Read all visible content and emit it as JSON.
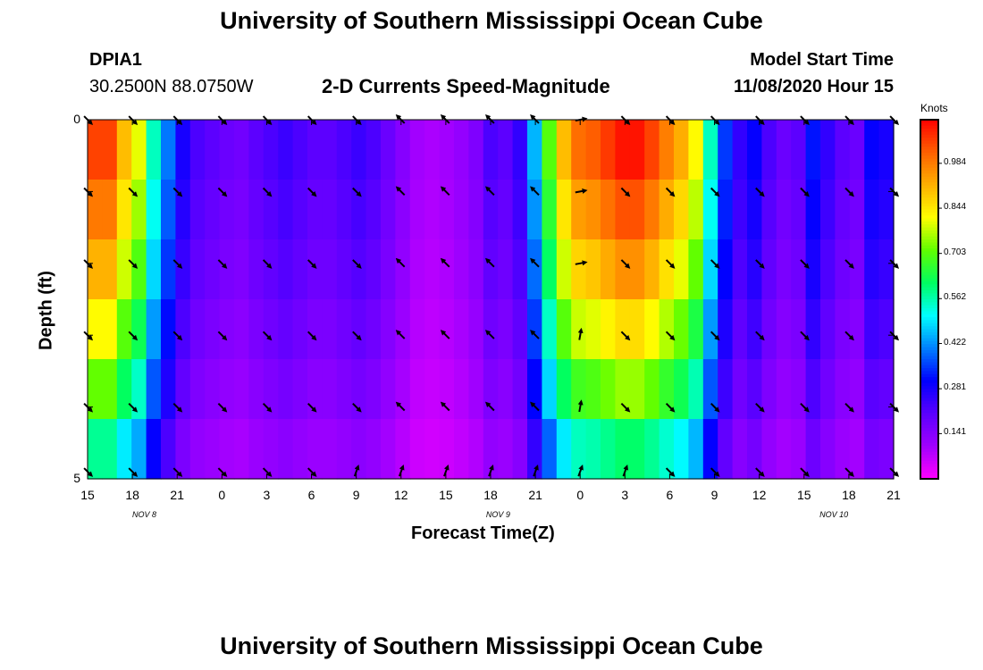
{
  "header": {
    "main_title": "University of Southern Mississippi Ocean Cube",
    "footer_title": "University of Southern Mississippi Ocean Cube",
    "station_id": "DPIA1",
    "coordinates": "30.2500N 88.0750W",
    "chart_title": "2-D Currents Speed-Magnitude",
    "model_start_label": "Model Start Time",
    "model_start_value": "11/08/2020 Hour 15"
  },
  "chart_data": {
    "type": "heatmap",
    "title": "2-D Currents Speed-Magnitude",
    "xlabel": "Forecast Time(Z)",
    "ylabel": "Depth (ft)",
    "x_tick_labels": [
      "15",
      "18",
      "21",
      "0",
      "3",
      "6",
      "9",
      "12",
      "15",
      "18",
      "21",
      "0",
      "3",
      "6",
      "9",
      "12",
      "15",
      "18",
      "21"
    ],
    "y_tick_labels": [
      "0",
      "5"
    ],
    "y_range": [
      0,
      5
    ],
    "date_labels": [
      "NOV 8",
      "NOV 9",
      "NOV 10"
    ],
    "colorbar": {
      "unit": "Knots",
      "ticks": [
        "0.984",
        "0.844",
        "0.703",
        "0.562",
        "0.422",
        "0.281",
        "0.141"
      ],
      "tick_values": [
        0.984,
        0.844,
        0.703,
        0.562,
        0.422,
        0.281,
        0.141
      ],
      "range": [
        0,
        1.12
      ],
      "colors": [
        "#ff00ff",
        "#a000ff",
        "#5a00ff",
        "#0000ff",
        "#0080ff",
        "#00ffff",
        "#00ff60",
        "#60ff00",
        "#ffff00",
        "#ffb000",
        "#ff6000",
        "#ff0000"
      ]
    },
    "time_hours": [
      0,
      1,
      2,
      3,
      4,
      5,
      6,
      7,
      8,
      9,
      10,
      11,
      12,
      13,
      14,
      15,
      16,
      17,
      18,
      19,
      20,
      21,
      22,
      23,
      24,
      25,
      26,
      27,
      28,
      29,
      30,
      31,
      32,
      33,
      34,
      35,
      36,
      37,
      38,
      39,
      40,
      41,
      42,
      43,
      44,
      45,
      46,
      47,
      48,
      49,
      50,
      51,
      52,
      53,
      54
    ],
    "depth_layers_ft": [
      0.25,
      1.25,
      2.25,
      3.25,
      4.25,
      5.0
    ],
    "speed_at_surface": [
      1.05,
      1.05,
      0.9,
      0.8,
      0.55,
      0.4,
      0.28,
      0.22,
      0.2,
      0.18,
      0.17,
      0.2,
      0.22,
      0.24,
      0.22,
      0.2,
      0.2,
      0.22,
      0.24,
      0.22,
      0.18,
      0.14,
      0.1,
      0.09,
      0.1,
      0.12,
      0.15,
      0.22,
      0.2,
      0.25,
      0.45,
      0.7,
      0.9,
      1.0,
      1.02,
      1.06,
      1.1,
      1.1,
      1.05,
      0.98,
      0.92,
      0.82,
      0.55,
      0.35,
      0.25,
      0.3,
      0.22,
      0.18,
      0.2,
      0.32,
      0.25,
      0.2,
      0.18,
      0.3,
      0.28
    ],
    "depth_factor": [
      1.0,
      0.94,
      0.87,
      0.78,
      0.68,
      0.55
    ],
    "speed_tail": [
      0.3,
      0.28,
      0.26,
      0.24,
      0.22,
      0.2,
      0.22,
      0.26,
      0.35,
      0.55,
      0.72,
      0.85,
      0.9,
      0.92,
      0.88,
      0.78,
      0.62,
      0.45,
      0.3
    ],
    "arrow_times": [
      0,
      3,
      6,
      9,
      12,
      15,
      18,
      21,
      24,
      27,
      30,
      33,
      36,
      39,
      42,
      45,
      48,
      51,
      54
    ],
    "arrow_depths_ft": [
      0.0,
      1.0,
      2.0,
      3.0,
      4.0,
      4.9
    ]
  }
}
